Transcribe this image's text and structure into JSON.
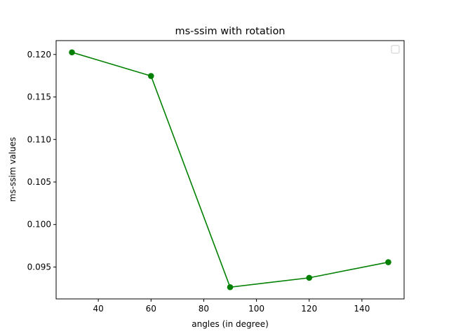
{
  "chart_data": {
    "type": "line",
    "title": "ms-ssim with rotation",
    "xlabel": "angles (in degree)",
    "ylabel": "ms-ssim values",
    "x": [
      30,
      60,
      90,
      120,
      150
    ],
    "series": [
      {
        "values": [
          0.12025,
          0.11747,
          0.09263,
          0.09373,
          0.09557
        ],
        "color": "#008000",
        "marker": "circle"
      }
    ],
    "xticks": [
      40,
      60,
      80,
      100,
      120,
      140
    ],
    "xtick_labels": [
      "40",
      "60",
      "80",
      "100",
      "120",
      "140"
    ],
    "yticks": [
      0.095,
      0.1,
      0.105,
      0.11,
      0.115,
      0.12
    ],
    "ytick_labels": [
      "0.095",
      "0.100",
      "0.105",
      "0.110",
      "0.115",
      "0.120"
    ],
    "xlim": [
      24,
      156
    ],
    "ylim": [
      0.09125,
      0.12163
    ],
    "grid": false,
    "legend": {
      "placement": "top-right",
      "entries": []
    }
  }
}
